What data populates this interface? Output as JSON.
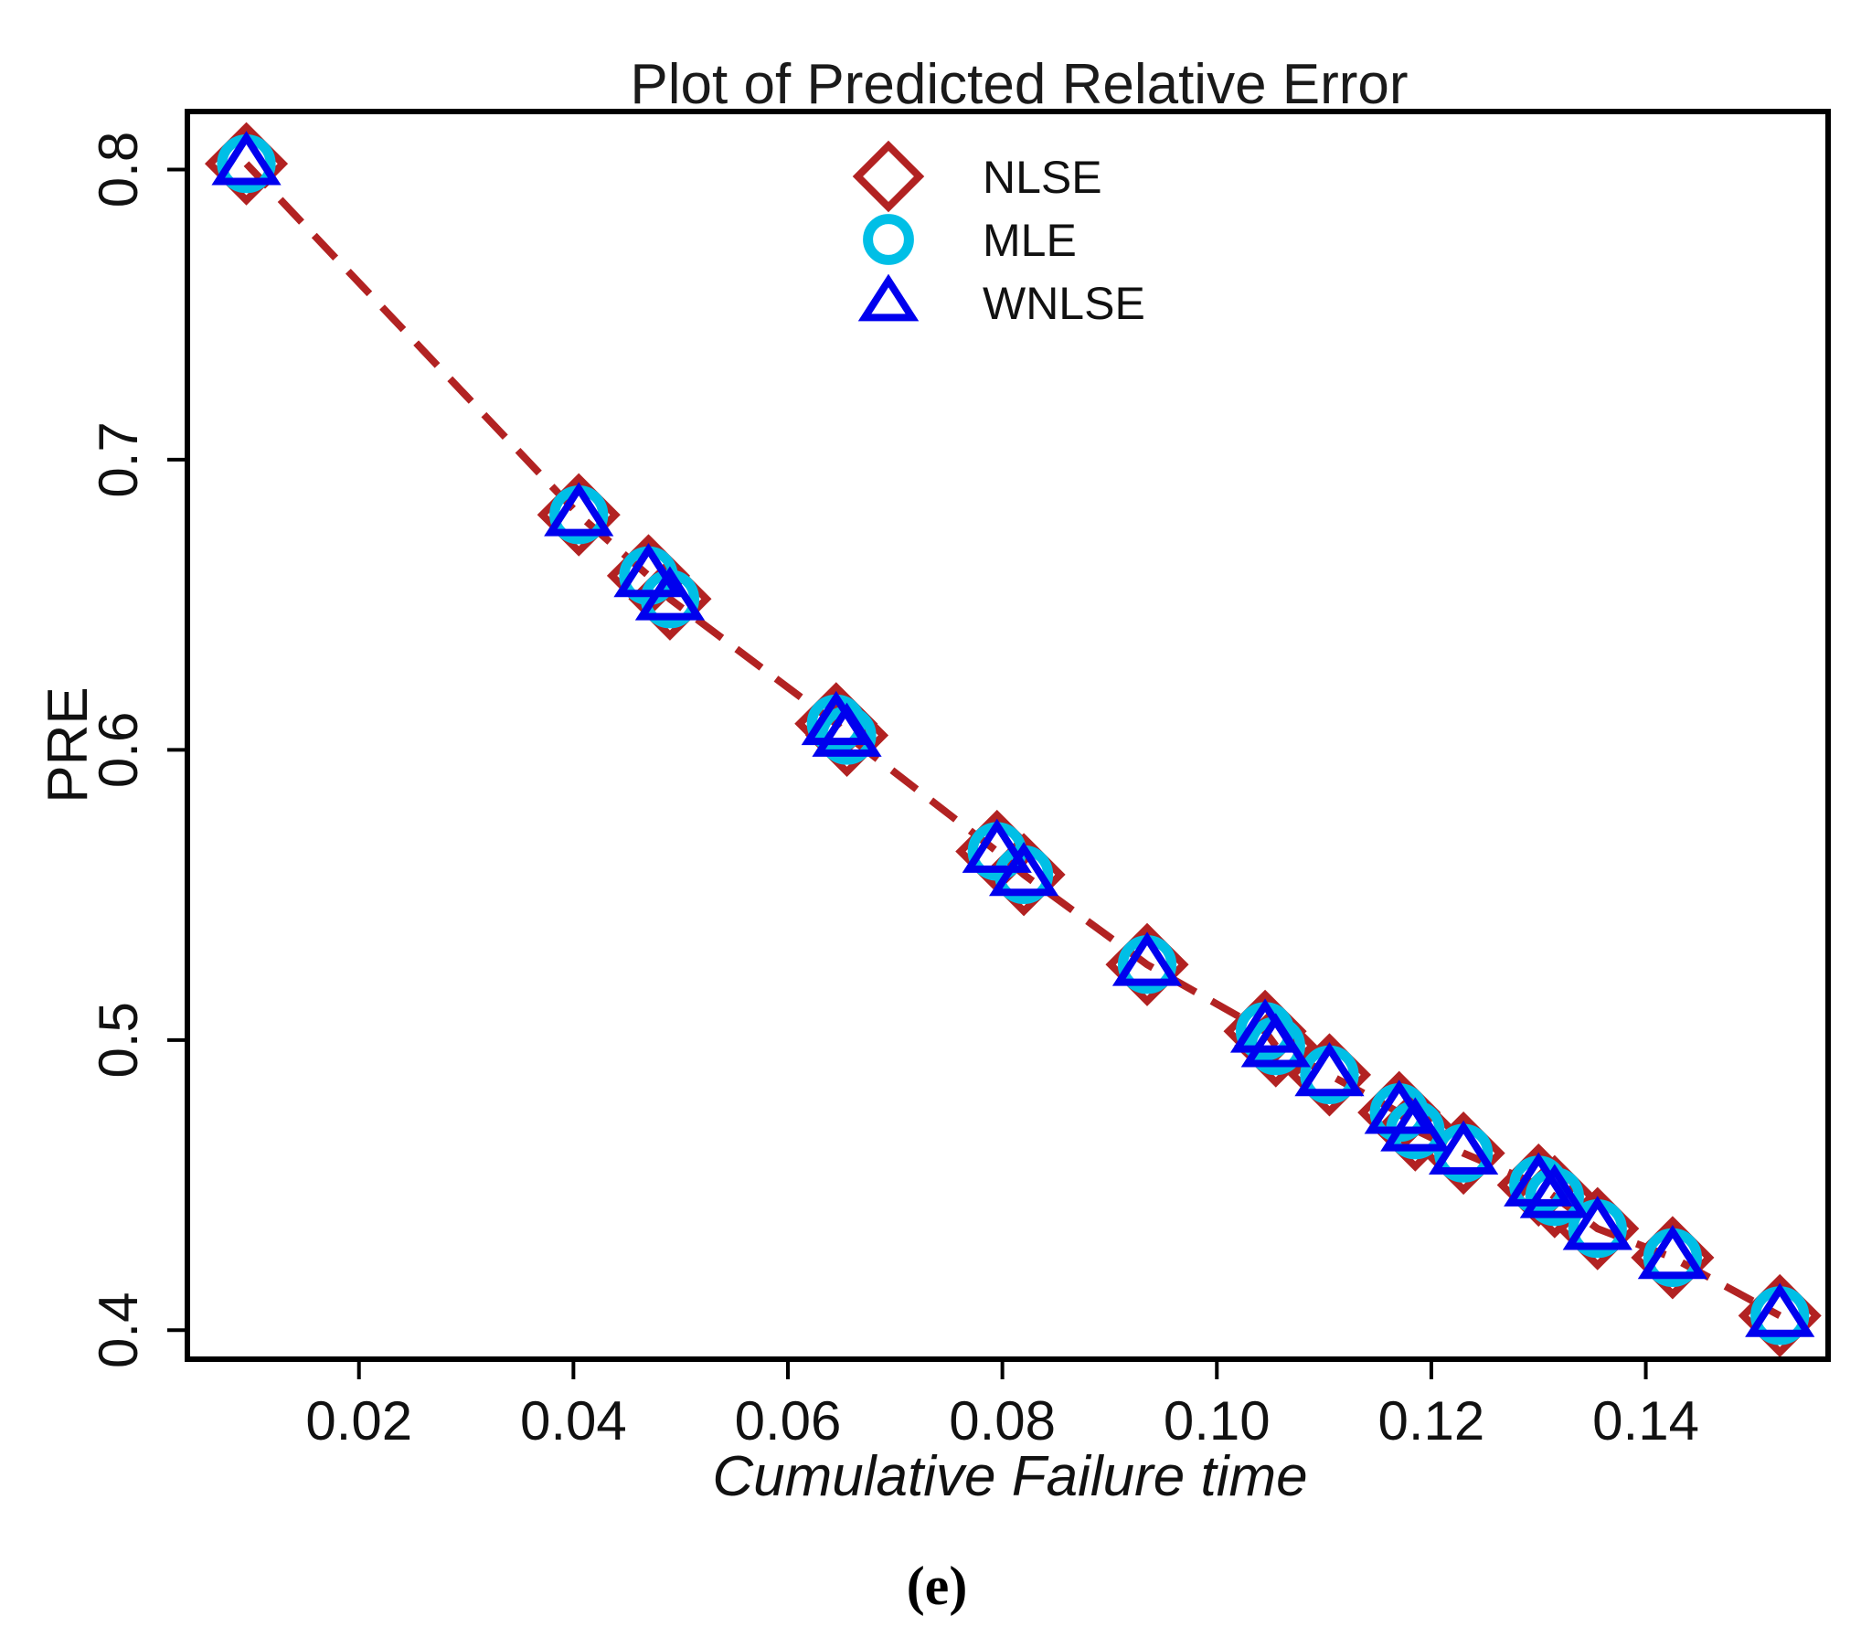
{
  "panel_label": "(e)",
  "colors": {
    "nlse": "#b22222",
    "mle": "#00bfe6",
    "wnlse": "#0000ee",
    "line": "#b22222",
    "axis": "#000000"
  },
  "chart_data": {
    "type": "scatter",
    "title": "Plot of Predicted Relative Error",
    "xlabel": "Cumulative Failure time",
    "ylabel": "PRE",
    "xlim": [
      0.004,
      0.157
    ],
    "ylim": [
      0.39,
      0.82
    ],
    "xticks": [
      0.02,
      0.04,
      0.06,
      0.08,
      0.1,
      0.12,
      0.14
    ],
    "xtick_labels": [
      "0.02",
      "0.04",
      "0.06",
      "0.08",
      "0.10",
      "0.12",
      "0.14"
    ],
    "yticks": [
      0.4,
      0.5,
      0.6,
      0.7,
      0.8
    ],
    "ytick_labels": [
      "0.4",
      "0.5",
      "0.6",
      "0.7",
      "0.8"
    ],
    "legend_position": "top-center",
    "legend": [
      {
        "name": "NLSE",
        "marker": "diamond",
        "color_key": "nlse"
      },
      {
        "name": "MLE",
        "marker": "circle",
        "color_key": "mle"
      },
      {
        "name": "WNLSE",
        "marker": "triangle",
        "color_key": "wnlse"
      }
    ],
    "line": {
      "style": "dashed",
      "color_key": "line"
    },
    "x": [
      0.0095,
      0.0405,
      0.047,
      0.049,
      0.0645,
      0.0655,
      0.0795,
      0.082,
      0.0935,
      0.1045,
      0.1055,
      0.1105,
      0.117,
      0.1185,
      0.123,
      0.13,
      0.1315,
      0.1355,
      0.1425,
      0.1525
    ],
    "series": [
      {
        "name": "NLSE",
        "values": [
          0.802,
          0.681,
          0.66,
          0.652,
          0.609,
          0.605,
          0.565,
          0.557,
          0.526,
          0.503,
          0.498,
          0.488,
          0.475,
          0.469,
          0.461,
          0.45,
          0.446,
          0.435,
          0.425,
          0.405
        ]
      },
      {
        "name": "MLE",
        "values": [
          0.802,
          0.681,
          0.66,
          0.652,
          0.609,
          0.605,
          0.565,
          0.557,
          0.526,
          0.503,
          0.498,
          0.488,
          0.475,
          0.469,
          0.461,
          0.45,
          0.446,
          0.435,
          0.425,
          0.405
        ]
      },
      {
        "name": "WNLSE",
        "values": [
          0.802,
          0.681,
          0.66,
          0.652,
          0.609,
          0.605,
          0.565,
          0.557,
          0.526,
          0.503,
          0.498,
          0.488,
          0.475,
          0.469,
          0.461,
          0.45,
          0.446,
          0.435,
          0.425,
          0.405
        ]
      }
    ]
  }
}
